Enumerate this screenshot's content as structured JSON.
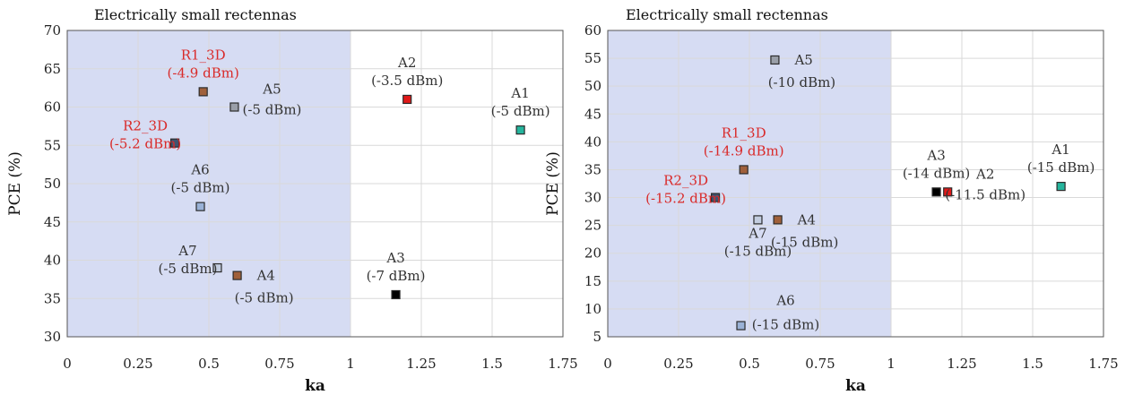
{
  "chart_data": [
    {
      "type": "scatter",
      "region_label": "Electrically small rectennas",
      "xlabel": "ka",
      "ylabel": "PCE (%)",
      "xlim": [
        0,
        1.75
      ],
      "ylim": [
        30,
        70
      ],
      "xticks": [
        "0",
        "0.25",
        "0.5",
        "0.75",
        "1",
        "1.25",
        "1.5",
        "1.75"
      ],
      "yticks": [
        "30",
        "35",
        "40",
        "45",
        "50",
        "55",
        "60",
        "65",
        "70"
      ],
      "grid": true,
      "shaded_region": {
        "x": [
          0,
          1
        ],
        "color": "#d6dcf3"
      },
      "points": [
        {
          "name": "R1_3D",
          "power": "(-4.9 dBm)",
          "x": 0.48,
          "y": 62,
          "color": "#a0603a",
          "label_color": "#d92a2a",
          "label_pos": "above"
        },
        {
          "name": "A5",
          "power": "(-5 dBm)",
          "x": 0.59,
          "y": 60,
          "color": "#9a9fa8",
          "label_color": "#333333",
          "label_pos": "right-below"
        },
        {
          "name": "R2_3D",
          "power": "(-5.2 dBm)",
          "x": 0.38,
          "y": 55.3,
          "color": "#3f5470",
          "label_color": "#d92a2a",
          "label_pos": "left"
        },
        {
          "name": "A6",
          "power": "(-5 dBm)",
          "x": 0.47,
          "y": 47,
          "color": "#9ab2d6",
          "label_color": "#333333",
          "label_pos": "above"
        },
        {
          "name": "A7",
          "power": "(-5 dBm)",
          "x": 0.53,
          "y": 39,
          "color": "#c3cde0",
          "label_color": "#333333",
          "label_pos": "left"
        },
        {
          "name": "A4",
          "power": "(-5 dBm)",
          "x": 0.6,
          "y": 38,
          "color": "#a0603a",
          "label_color": "#333333",
          "label_pos": "right"
        },
        {
          "name": "A2",
          "power": "(-3.5 dBm)",
          "x": 1.2,
          "y": 61,
          "color": "#e01919",
          "label_color": "#333333",
          "label_pos": "above"
        },
        {
          "name": "A1",
          "power": "(-5 dBm)",
          "x": 1.6,
          "y": 57,
          "color": "#25b59d",
          "label_color": "#333333",
          "label_pos": "above"
        },
        {
          "name": "A3",
          "power": "(-7 dBm)",
          "x": 1.16,
          "y": 35.5,
          "color": "#000000",
          "label_color": "#333333",
          "label_pos": "above"
        }
      ]
    },
    {
      "type": "scatter",
      "region_label": "Electrically small rectennas",
      "xlabel": "ka",
      "ylabel": "PCE (%)",
      "xlim": [
        0,
        1.75
      ],
      "ylim": [
        5,
        60
      ],
      "xticks": [
        "0",
        "0.25",
        "0.5",
        "0.75",
        "1",
        "1.25",
        "1.5",
        "1.75"
      ],
      "yticks": [
        "5",
        "10",
        "15",
        "20",
        "25",
        "30",
        "35",
        "40",
        "45",
        "50",
        "55",
        "60"
      ],
      "grid": true,
      "shaded_region": {
        "x": [
          0,
          1
        ],
        "color": "#d6dcf3"
      },
      "points": [
        {
          "name": "A5",
          "power": "(-10 dBm)",
          "x": 0.59,
          "y": 54.7,
          "color": "#9a9fa8",
          "label_color": "#333333",
          "label_pos": "right"
        },
        {
          "name": "R1_3D",
          "power": "(-14.9 dBm)",
          "x": 0.48,
          "y": 35,
          "color": "#a0603a",
          "label_color": "#d92a2a",
          "label_pos": "above"
        },
        {
          "name": "R2_3D",
          "power": "(-15.2 dBm)",
          "x": 0.38,
          "y": 30,
          "color": "#3f5470",
          "label_color": "#d92a2a",
          "label_pos": "left"
        },
        {
          "name": "A7",
          "power": "(-15 dBm)",
          "x": 0.53,
          "y": 26,
          "color": "#c3cde0",
          "label_color": "#333333",
          "label_pos": "below"
        },
        {
          "name": "A4",
          "power": "(-15 dBm)",
          "x": 0.6,
          "y": 26,
          "color": "#a0603a",
          "label_color": "#333333",
          "label_pos": "right"
        },
        {
          "name": "A6",
          "power": "(-15 dBm)",
          "x": 0.47,
          "y": 7,
          "color": "#9ab2d6",
          "label_color": "#333333",
          "label_pos": "right-above"
        },
        {
          "name": "A3",
          "power": "(-14 dBm)",
          "x": 1.16,
          "y": 31,
          "color": "#000000",
          "label_color": "#333333",
          "label_pos": "above"
        },
        {
          "name": "A2",
          "power": "(-11.5 dBm)",
          "x": 1.2,
          "y": 31,
          "color": "#e01919",
          "label_color": "#333333",
          "label_pos": "right-below"
        },
        {
          "name": "A1",
          "power": "(-15 dBm)",
          "x": 1.6,
          "y": 32,
          "color": "#25b59d",
          "label_color": "#333333",
          "label_pos": "above"
        }
      ]
    }
  ]
}
